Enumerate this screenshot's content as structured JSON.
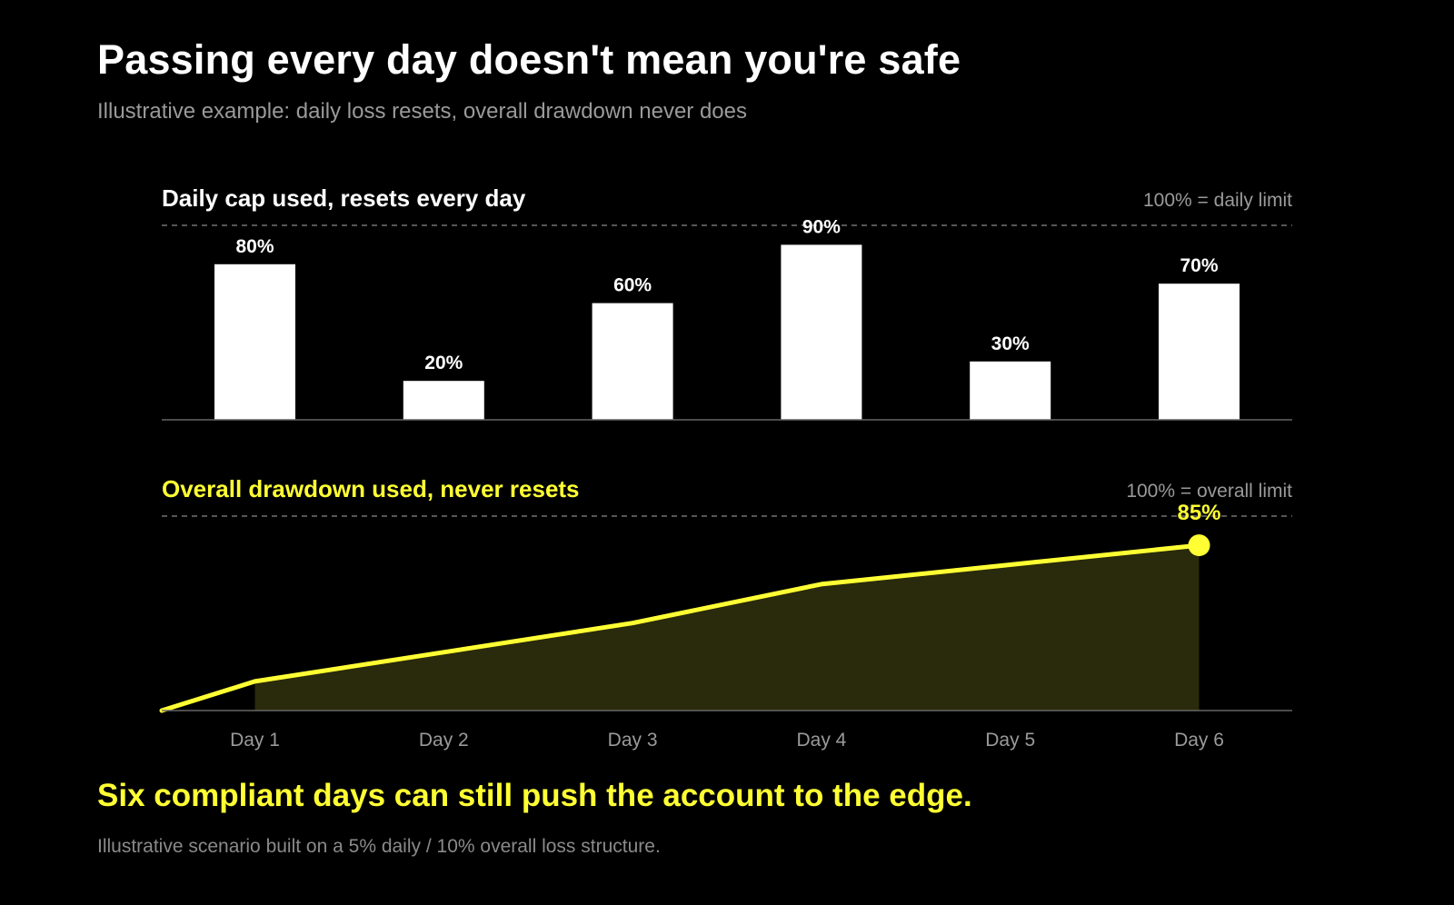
{
  "title": "Passing every day doesn't mean you're safe",
  "subtitle": "Illustrative example: daily loss resets, overall drawdown never does",
  "callout": "Six compliant days can still push the account to the edge.",
  "footnote": "Illustrative scenario built on a 5% daily / 10% overall loss structure.",
  "colors": {
    "background": "#000000",
    "bar": "#ffffff",
    "accent": "#ffff33",
    "muted": "#9a9a9a",
    "area_fill": "#2a2a0c",
    "baseline": "#666666"
  },
  "chart_data": [
    {
      "type": "bar",
      "title": "Daily cap used, resets every day",
      "reference_label": "100% = daily limit",
      "categories": [
        "Day 1",
        "Day 2",
        "Day 3",
        "Day 4",
        "Day 5",
        "Day 6"
      ],
      "values": [
        80,
        20,
        60,
        90,
        30,
        70
      ],
      "data_labels": [
        "80%",
        "20%",
        "60%",
        "90%",
        "30%",
        "70%"
      ],
      "ylim": [
        0,
        100
      ],
      "reference_line": 100,
      "grid": false
    },
    {
      "type": "area",
      "title": "Overall drawdown used, never resets",
      "reference_label": "100% = overall limit",
      "categories": [
        "Day 1",
        "Day 2",
        "Day 3",
        "Day 4",
        "Day 5",
        "Day 6"
      ],
      "start_value": 0,
      "values": [
        15,
        30,
        45,
        65,
        75,
        85
      ],
      "end_label": "85%",
      "ylim": [
        0,
        100
      ],
      "reference_line": 100,
      "grid": false
    }
  ]
}
